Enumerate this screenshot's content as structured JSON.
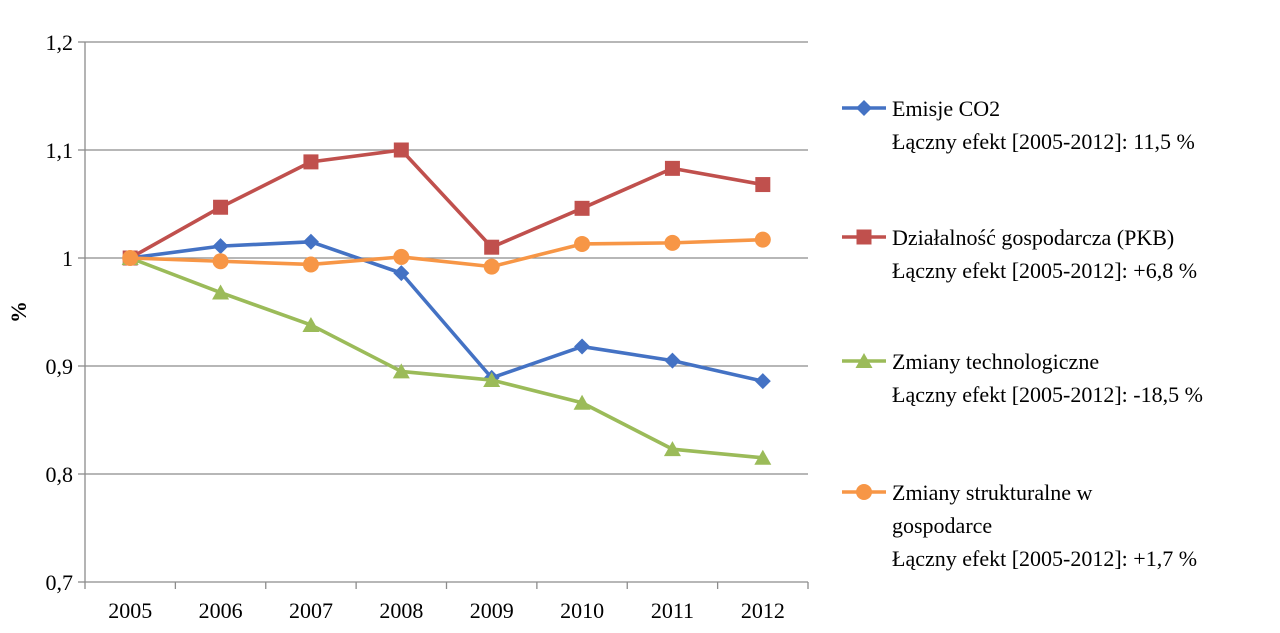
{
  "chart_data": {
    "type": "line",
    "title": "",
    "xlabel": "",
    "ylabel": "%",
    "ylim": [
      0.7,
      1.2
    ],
    "y_ticks": [
      "0,7",
      "0,8",
      "0,9",
      "1",
      "1,1",
      "1,2"
    ],
    "y_tick_values": [
      0.7,
      0.8,
      0.9,
      1.0,
      1.1,
      1.2
    ],
    "categories": [
      "2005",
      "2006",
      "2007",
      "2008",
      "2009",
      "2010",
      "2011",
      "2012"
    ],
    "grid": true,
    "legend_position": "right",
    "series": [
      {
        "name": "Emisje CO2",
        "legend_lines": [
          "Emisje CO2",
          "Łączny efekt [2005-2012]: 11,5 %"
        ],
        "color": "#4472C4",
        "marker": "diamond",
        "values": [
          1.0,
          1.011,
          1.015,
          0.986,
          0.889,
          0.918,
          0.905,
          0.886
        ]
      },
      {
        "name": "Działalność gospodarcza (PKB)",
        "legend_lines": [
          "Działalność gospodarcza (PKB)",
          "Łączny efekt [2005-2012]: +6,8 %"
        ],
        "color": "#C0504D",
        "marker": "square",
        "values": [
          1.0,
          1.047,
          1.089,
          1.1,
          1.01,
          1.046,
          1.083,
          1.068
        ]
      },
      {
        "name": "Zmiany technologiczne",
        "legend_lines": [
          "Zmiany technologiczne",
          "Łączny efekt [2005-2012]: -18,5 %"
        ],
        "color": "#9BBB59",
        "marker": "triangle",
        "values": [
          1.0,
          0.968,
          0.938,
          0.895,
          0.887,
          0.866,
          0.823,
          0.815
        ]
      },
      {
        "name": "Zmiany strukturalne w gospodarce",
        "legend_lines": [
          "Zmiany strukturalne w",
          "gospodarce",
          "Łączny efekt [2005-2012]: +1,7 %"
        ],
        "color": "#F79646",
        "marker": "circle",
        "values": [
          1.0,
          0.997,
          0.994,
          1.001,
          0.992,
          1.013,
          1.014,
          1.017
        ]
      }
    ]
  }
}
